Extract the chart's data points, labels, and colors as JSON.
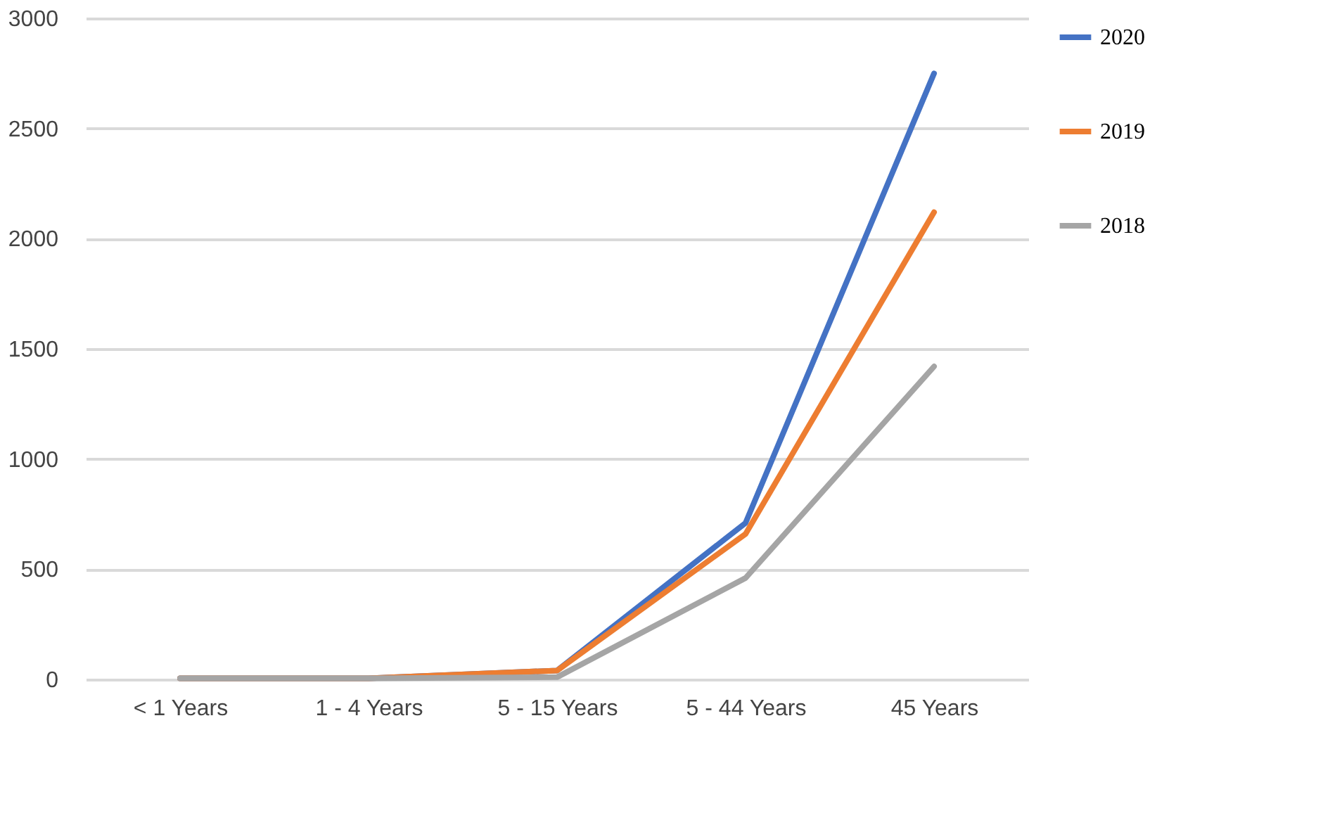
{
  "chart_data": {
    "type": "line",
    "categories": [
      "< 1 Years",
      "1 - 4 Years",
      "5 - 15 Years",
      "5 - 44 Years",
      "45 Years"
    ],
    "series": [
      {
        "name": "2020",
        "color": "#4472c4",
        "values": [
          5,
          5,
          40,
          710,
          2750
        ]
      },
      {
        "name": "2019",
        "color": "#ed7d31",
        "values": [
          5,
          5,
          40,
          660,
          2120
        ]
      },
      {
        "name": "2018",
        "color": "#a5a5a5",
        "values": [
          5,
          5,
          10,
          460,
          1420
        ]
      }
    ],
    "ylim": [
      0,
      3000
    ],
    "yticks": [
      0,
      500,
      1000,
      1500,
      2000,
      2500,
      3000
    ],
    "grid": "y",
    "legend": "right",
    "marker": "none",
    "line_style": "solid"
  }
}
